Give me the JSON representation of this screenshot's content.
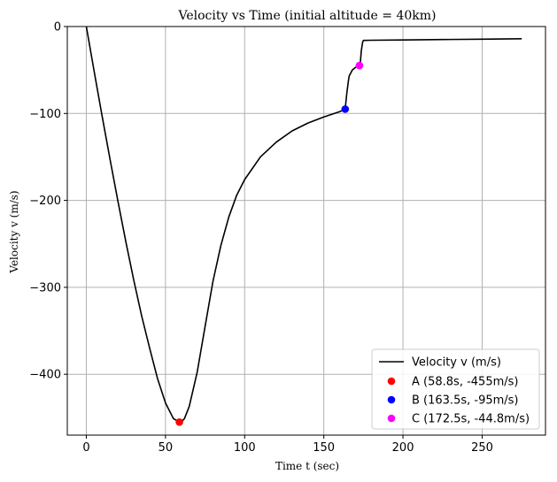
{
  "chart_data": {
    "type": "line",
    "title": "Velocity vs Time (initial altitude = 40km)",
    "xlabel": "Time t (sec)",
    "ylabel": "Velocity v (m/s)",
    "xlim": [
      -12,
      290
    ],
    "ylim": [
      -470,
      0
    ],
    "xticks": [
      0,
      50,
      100,
      150,
      200,
      250
    ],
    "yticks": [
      0,
      -100,
      -200,
      -300,
      -400
    ],
    "grid": true,
    "legend_position": "lower-right",
    "series": [
      {
        "name": "Velocity v (m/s)",
        "color": "#000000",
        "x": [
          0,
          5,
          10,
          15,
          20,
          25,
          30,
          35,
          40,
          45,
          50,
          55,
          58.8,
          60,
          62,
          65,
          70,
          75,
          80,
          85,
          90,
          95,
          100,
          110,
          120,
          130,
          140,
          150,
          160,
          163.5,
          164.5,
          165.5,
          166,
          168,
          170,
          172.5,
          173,
          173.7,
          174.5,
          175,
          180,
          200,
          225,
          250,
          275
        ],
        "y": [
          0,
          -52,
          -103,
          -153,
          -201,
          -248,
          -292,
          -333,
          -370,
          -405,
          -433,
          -451,
          -455,
          -455,
          -451,
          -437,
          -398,
          -345,
          -293,
          -252,
          -219,
          -194,
          -176,
          -150,
          -133,
          -120,
          -111,
          -104,
          -98,
          -95,
          -77,
          -63,
          -57,
          -50,
          -47,
          -44.8,
          -43,
          -28,
          -18,
          -16,
          -15.8,
          -15.5,
          -15,
          -14.5,
          -14
        ]
      }
    ],
    "points": [
      {
        "name": "A (58.8s, -455m/s)",
        "x": 58.8,
        "y": -455,
        "color": "#ff0000"
      },
      {
        "name": "B (163.5s, -95m/s)",
        "x": 163.5,
        "y": -95,
        "color": "#0000ff"
      },
      {
        "name": "C (172.5s, -44.8m/s)",
        "x": 172.5,
        "y": -44.8,
        "color": "#ff00ff"
      }
    ]
  }
}
